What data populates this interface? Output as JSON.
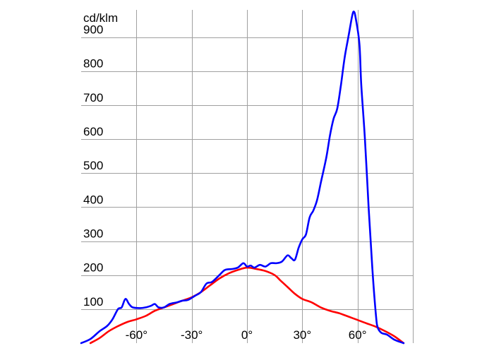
{
  "chart_data": {
    "type": "line",
    "unit_label": "cd/klm",
    "xlim": [
      -90,
      90
    ],
    "ylim": [
      0,
      980
    ],
    "x_ticks": [
      {
        "value": -60,
        "label": "-60°"
      },
      {
        "value": -30,
        "label": "-30°"
      },
      {
        "value": 0,
        "label": "0°"
      },
      {
        "value": 30,
        "label": "30°"
      },
      {
        "value": 60,
        "label": "60°"
      }
    ],
    "x_grid": [
      -60,
      -30,
      0,
      30,
      60,
      90
    ],
    "y_ticks": [
      {
        "value": 100,
        "label": "100"
      },
      {
        "value": 200,
        "label": "200"
      },
      {
        "value": 300,
        "label": "300"
      },
      {
        "value": 400,
        "label": "400"
      },
      {
        "value": 500,
        "label": "500"
      },
      {
        "value": 600,
        "label": "600"
      },
      {
        "value": 700,
        "label": "700"
      },
      {
        "value": 800,
        "label": "800"
      },
      {
        "value": 900,
        "label": "900"
      }
    ],
    "grid": true,
    "series": [
      {
        "color": "#0000ff",
        "points": [
          [
            -90,
            0
          ],
          [
            -85,
            12
          ],
          [
            -80,
            35
          ],
          [
            -76,
            50
          ],
          [
            -73,
            70
          ],
          [
            -70,
            100
          ],
          [
            -68,
            105
          ],
          [
            -66,
            130
          ],
          [
            -64,
            115
          ],
          [
            -62,
            105
          ],
          [
            -58,
            103
          ],
          [
            -55,
            105
          ],
          [
            -52,
            110
          ],
          [
            -50,
            115
          ],
          [
            -48,
            105
          ],
          [
            -45,
            105
          ],
          [
            -42,
            115
          ],
          [
            -38,
            120
          ],
          [
            -35,
            125
          ],
          [
            -32,
            127
          ],
          [
            -28,
            140
          ],
          [
            -25,
            150
          ],
          [
            -22,
            175
          ],
          [
            -19,
            180
          ],
          [
            -15,
            200
          ],
          [
            -12,
            215
          ],
          [
            -8,
            218
          ],
          [
            -5,
            222
          ],
          [
            -2,
            235
          ],
          [
            0,
            225
          ],
          [
            2,
            228
          ],
          [
            4,
            222
          ],
          [
            7,
            230
          ],
          [
            10,
            225
          ],
          [
            13,
            235
          ],
          [
            16,
            235
          ],
          [
            19,
            240
          ],
          [
            22,
            258
          ],
          [
            24,
            250
          ],
          [
            26,
            245
          ],
          [
            28,
            280
          ],
          [
            30,
            305
          ],
          [
            32,
            320
          ],
          [
            34,
            370
          ],
          [
            36,
            390
          ],
          [
            38,
            420
          ],
          [
            40,
            470
          ],
          [
            43,
            545
          ],
          [
            45,
            610
          ],
          [
            47,
            660
          ],
          [
            49,
            690
          ],
          [
            51,
            760
          ],
          [
            53,
            840
          ],
          [
            55,
            900
          ],
          [
            57,
            960
          ],
          [
            58,
            975
          ],
          [
            59,
            955
          ],
          [
            61,
            880
          ],
          [
            62,
            760
          ],
          [
            64,
            600
          ],
          [
            66,
            400
          ],
          [
            68,
            220
          ],
          [
            70,
            80
          ],
          [
            71,
            45
          ],
          [
            73,
            30
          ],
          [
            76,
            25
          ],
          [
            80,
            10
          ],
          [
            85,
            0
          ]
        ]
      },
      {
        "color": "#ff0000",
        "points": [
          [
            -85,
            0
          ],
          [
            -80,
            15
          ],
          [
            -75,
            35
          ],
          [
            -70,
            50
          ],
          [
            -65,
            62
          ],
          [
            -60,
            70
          ],
          [
            -55,
            80
          ],
          [
            -50,
            95
          ],
          [
            -45,
            105
          ],
          [
            -40,
            115
          ],
          [
            -35,
            125
          ],
          [
            -30,
            135
          ],
          [
            -25,
            150
          ],
          [
            -20,
            170
          ],
          [
            -15,
            190
          ],
          [
            -10,
            205
          ],
          [
            -5,
            215
          ],
          [
            0,
            222
          ],
          [
            5,
            218
          ],
          [
            10,
            212
          ],
          [
            15,
            200
          ],
          [
            18,
            185
          ],
          [
            22,
            165
          ],
          [
            26,
            145
          ],
          [
            30,
            130
          ],
          [
            35,
            120
          ],
          [
            40,
            105
          ],
          [
            45,
            95
          ],
          [
            50,
            88
          ],
          [
            55,
            78
          ],
          [
            60,
            68
          ],
          [
            65,
            58
          ],
          [
            70,
            48
          ],
          [
            75,
            35
          ],
          [
            80,
            20
          ],
          [
            85,
            0
          ]
        ]
      }
    ]
  }
}
